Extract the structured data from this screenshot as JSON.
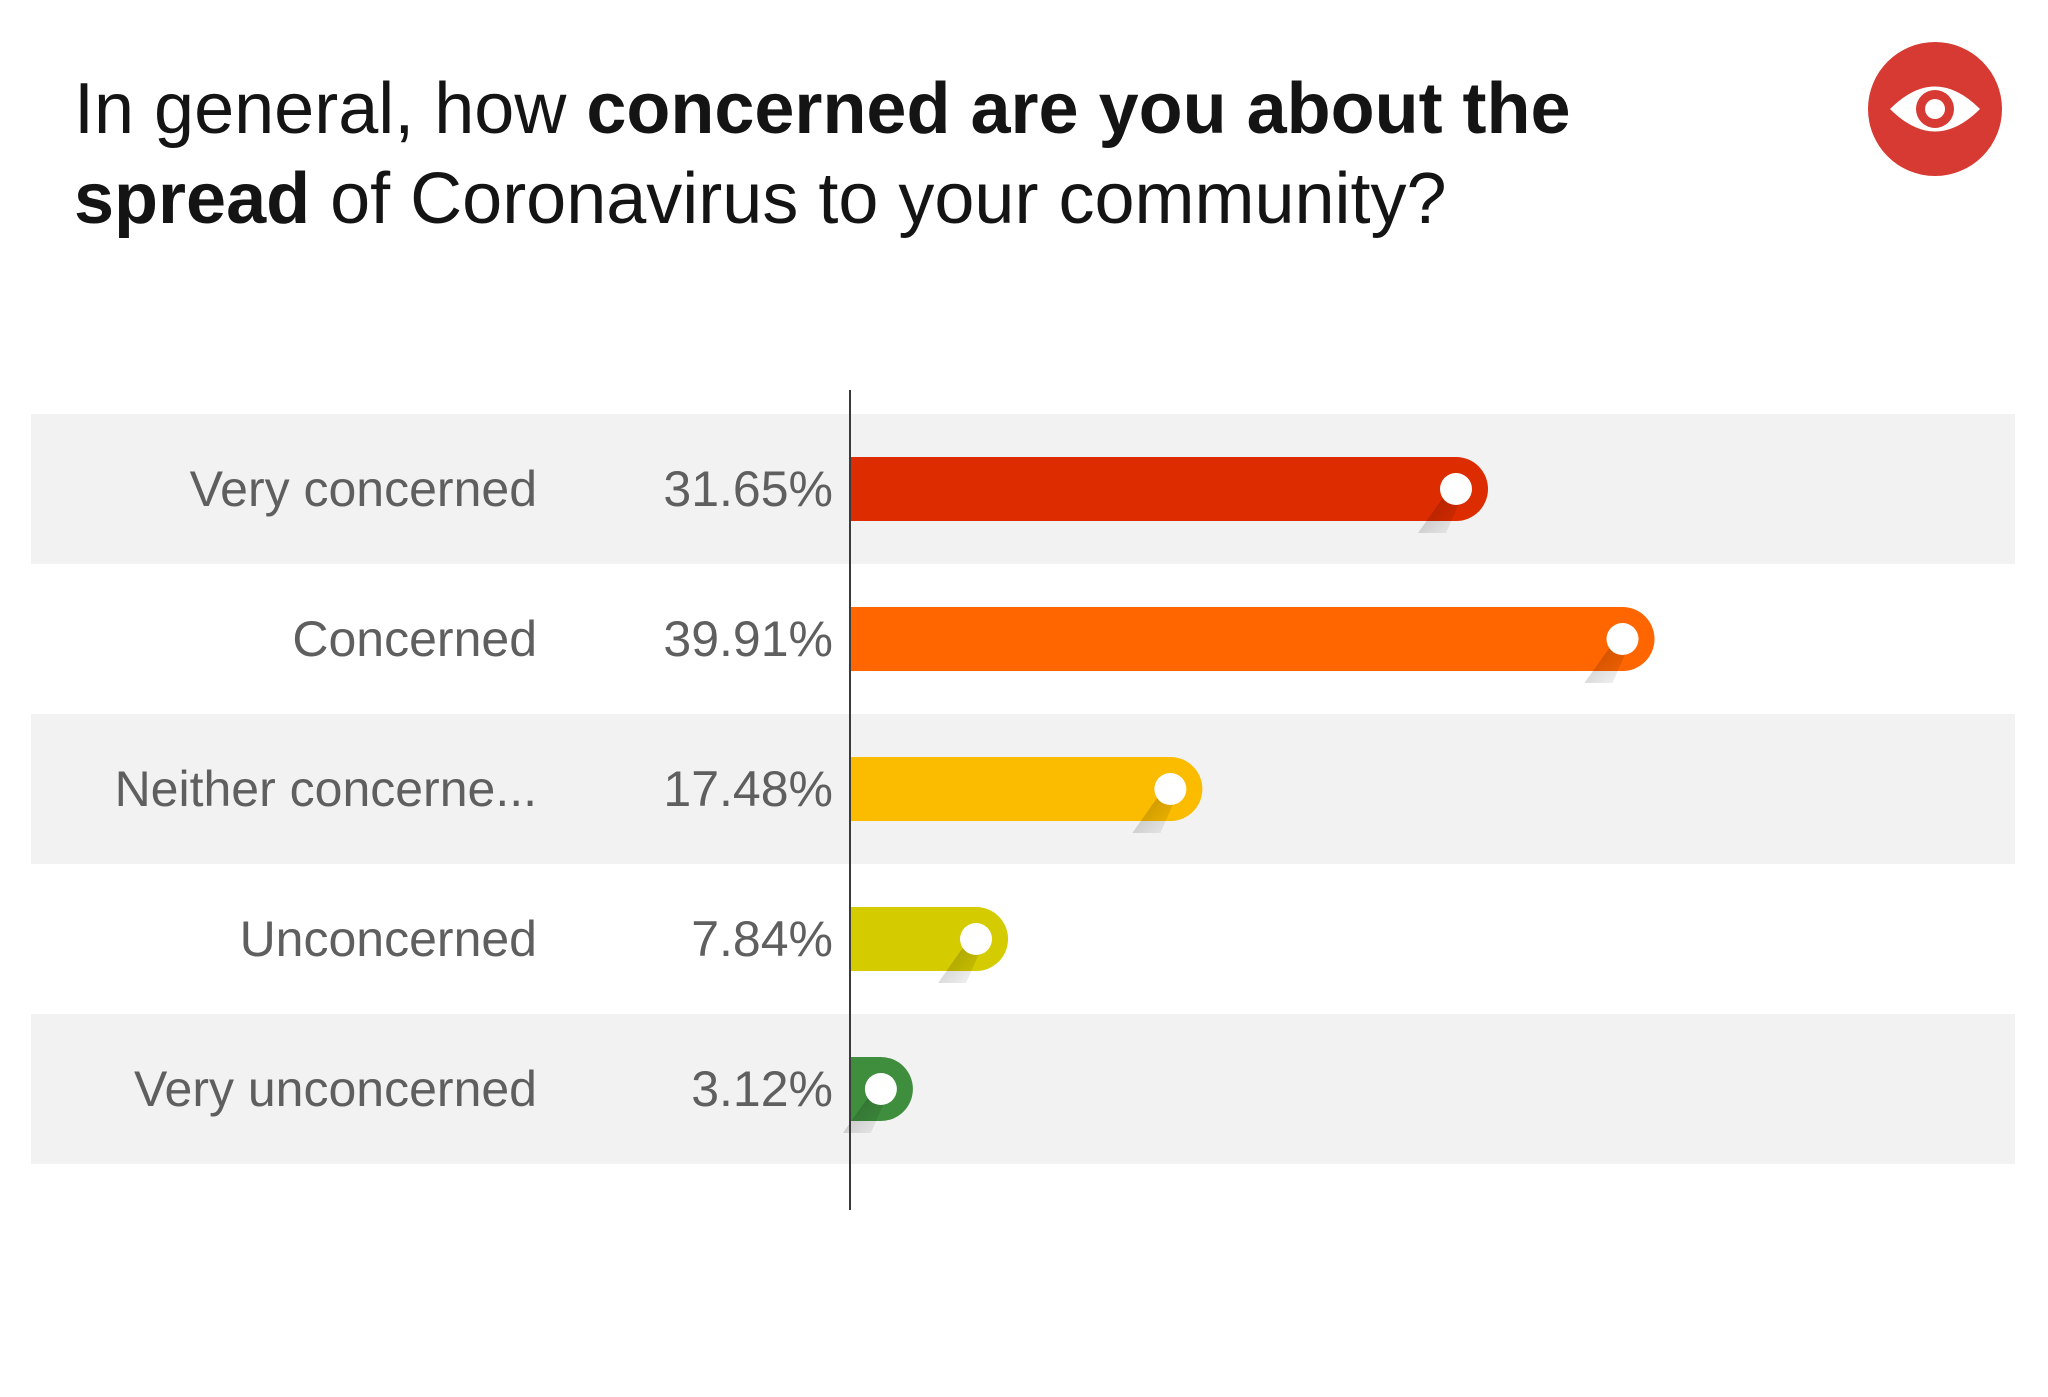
{
  "title": {
    "part1": "In general, how ",
    "bold1": "concerned are you about the",
    "bold2": "spread",
    "part2": " of Coronavirus to your community?"
  },
  "logo": {
    "icon": "eye-icon",
    "color": "#d63a32"
  },
  "chart_data": {
    "type": "bar",
    "orientation": "horizontal",
    "categories": [
      "Very concerned",
      "Concerned",
      "Neither concerne...",
      "Unconcerned",
      "Very unconcerned"
    ],
    "values": [
      31.65,
      39.91,
      17.48,
      7.84,
      3.12
    ],
    "value_labels": [
      "31.65%",
      "39.91%",
      "17.48%",
      "7.84%",
      "3.12%"
    ],
    "colors": [
      "#dd2c00",
      "#ff6600",
      "#fbbc00",
      "#d4cb00",
      "#3e8e3e"
    ],
    "xlim": [
      0,
      60
    ],
    "grid": false,
    "legend": "none",
    "striped_rows": true
  }
}
